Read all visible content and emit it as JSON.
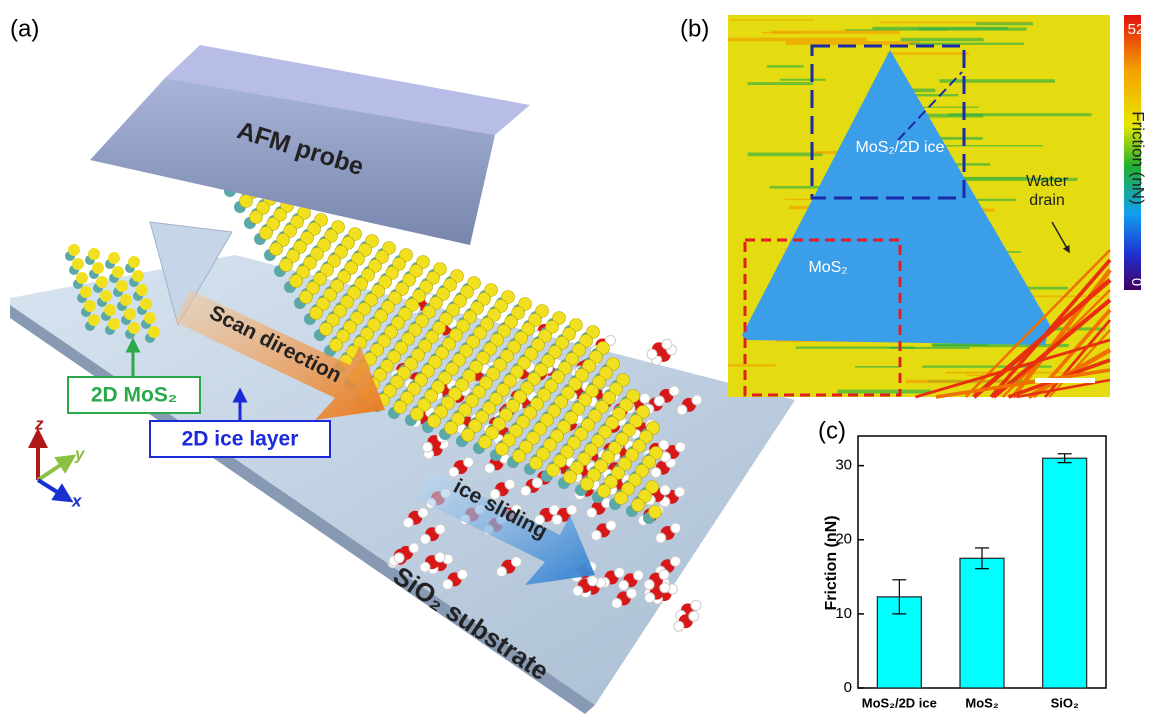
{
  "panel_a": {
    "label": "(a)",
    "probe": "AFM probe",
    "scan": "Scan direction",
    "mos2": "2D MoS₂",
    "ice_layer": "2D ice layer",
    "sliding": "ice sliding",
    "substrate": "SiO₂ substrate",
    "axes": {
      "z": "z",
      "y": "y",
      "x": "x"
    }
  },
  "panel_b": {
    "label": "(b)",
    "region_ice": "MoS₂/2D ice",
    "region_mos2": "MoS₂",
    "water_drain": "Water\ndrain",
    "colorbar": {
      "label": "Friction (nN)",
      "max": 52,
      "min": 0
    }
  },
  "chart_data": {
    "type": "bar",
    "panel_label": "(c)",
    "ylabel": "Friction (nN)",
    "categories": [
      "MoS₂/2D ice",
      "MoS₂",
      "SiO₂"
    ],
    "values": [
      12.3,
      17.5,
      31.0
    ],
    "errors": [
      2.3,
      1.4,
      0.6
    ],
    "color": "#00ffff",
    "ylim": [
      0,
      34
    ],
    "yticks": [
      0,
      10,
      20,
      30
    ]
  }
}
